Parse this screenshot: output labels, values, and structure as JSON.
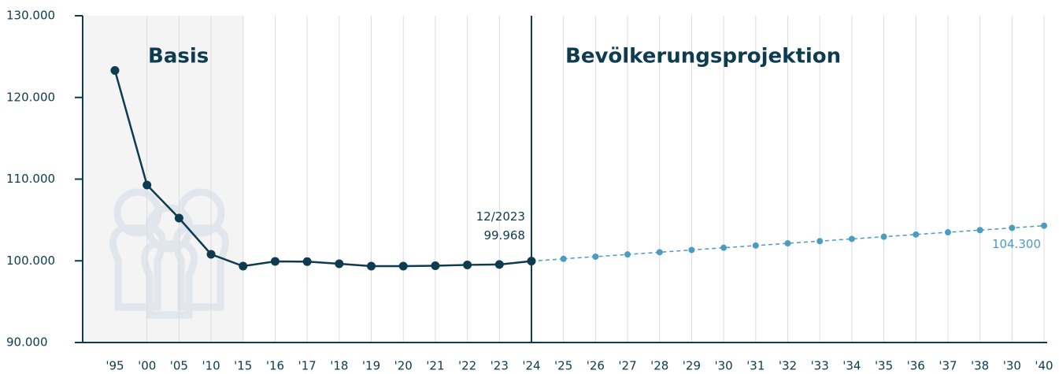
{
  "chart_data": {
    "type": "line",
    "categories": [
      "'95",
      "'00",
      "'05",
      "'10",
      "'15",
      "'16",
      "'17",
      "'18",
      "'19",
      "'20",
      "'21",
      "'22",
      "'23",
      "'24",
      "'25",
      "'26",
      "'27",
      "'28",
      "'29",
      "'30",
      "'31",
      "'32",
      "'33",
      "'34",
      "'35",
      "'36",
      "'37",
      "'38",
      "'30",
      "'40"
    ],
    "series": [
      {
        "name": "Basis",
        "color": "#0d3b4f",
        "dashed": false,
        "values": [
          123300,
          109280,
          105230,
          100800,
          99350,
          99930,
          99900,
          99640,
          99350,
          99350,
          99400,
          99500,
          99550,
          99968,
          null,
          null,
          null,
          null,
          null,
          null,
          null,
          null,
          null,
          null,
          null,
          null,
          null,
          null,
          null,
          null
        ],
        "value_labels": [
          null,
          null,
          null,
          null,
          null,
          null,
          null,
          null,
          null,
          null,
          null,
          null,
          null,
          "99.968",
          null,
          null,
          null,
          null,
          null,
          null,
          null,
          null,
          null,
          null,
          null,
          null,
          null,
          null,
          null,
          null
        ]
      },
      {
        "name": "Bevölkerungsprojektion",
        "color": "#4a9cc0",
        "dashed": true,
        "values": [
          null,
          null,
          null,
          null,
          null,
          null,
          null,
          null,
          null,
          null,
          null,
          null,
          null,
          null,
          100240,
          100510,
          100780,
          101050,
          101330,
          101600,
          101870,
          102140,
          102410,
          102680,
          102950,
          103220,
          103490,
          103760,
          104030,
          104300
        ],
        "value_labels": [
          null,
          null,
          null,
          null,
          null,
          null,
          null,
          null,
          null,
          null,
          null,
          null,
          null,
          null,
          null,
          null,
          null,
          null,
          null,
          null,
          null,
          null,
          null,
          null,
          null,
          null,
          null,
          null,
          null,
          "104.300"
        ]
      }
    ],
    "annotations": [
      {
        "text": "12/2023"
      }
    ],
    "ylim": [
      90000,
      130000
    ],
    "yticks": [
      {
        "value": 90000,
        "label": "90.000"
      },
      {
        "value": 100000,
        "label": "100.000"
      },
      {
        "value": 110000,
        "label": "110.000"
      },
      {
        "value": 120000,
        "label": "120.000"
      },
      {
        "value": 130000,
        "label": "130.000"
      }
    ],
    "grid": true
  }
}
